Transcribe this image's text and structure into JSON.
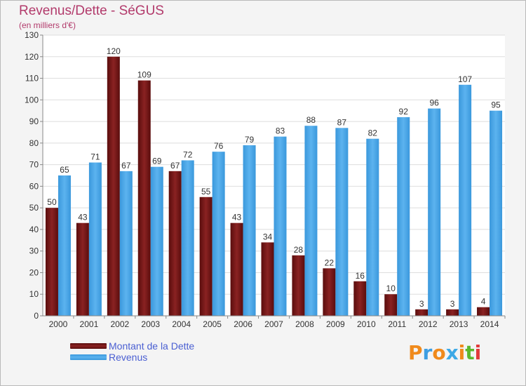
{
  "colors": {
    "debt": "#7a1515",
    "revenue": "#3d9ee2",
    "title": "#b23a6b",
    "legend_text": "#4a5fd2"
  },
  "logo": {
    "text": "Proxiti",
    "letter_colors": [
      "#f08a1c",
      "#3d9ee2",
      "#f08a1c",
      "#3da9e6",
      "#f08a1c",
      "#5cb82e",
      "#e23a3a"
    ]
  },
  "chart_data": {
    "type": "bar",
    "title": "Revenus/Dette - SéGUS",
    "subtitle": "(en milliers d'€)",
    "xlabel": "",
    "ylabel": "",
    "ylim": [
      0,
      130
    ],
    "yticks": [
      0,
      10,
      20,
      30,
      40,
      50,
      60,
      70,
      80,
      90,
      100,
      110,
      120,
      130
    ],
    "grid": true,
    "legend_position": "bottom-left",
    "categories": [
      "2000",
      "2001",
      "2002",
      "2003",
      "2004",
      "2005",
      "2006",
      "2007",
      "2008",
      "2009",
      "2010",
      "2011",
      "2012",
      "2013",
      "2014"
    ],
    "series": [
      {
        "name": "Montant de la Dette",
        "values": [
          50,
          43,
          120,
          109,
          67,
          55,
          43,
          34,
          28,
          22,
          16,
          10,
          3,
          3,
          4
        ]
      },
      {
        "name": "Revenus",
        "values": [
          65,
          71,
          67,
          69,
          72,
          76,
          79,
          83,
          88,
          87,
          82,
          92,
          96,
          107,
          95
        ]
      }
    ]
  }
}
